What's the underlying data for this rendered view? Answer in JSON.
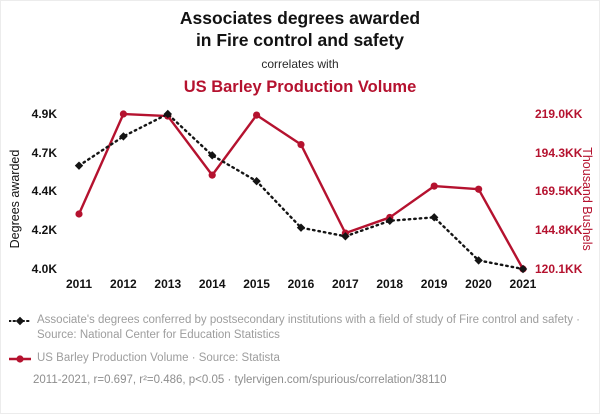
{
  "header": {
    "title_line1": "Associates degrees awarded",
    "title_line2": "in Fire control and safety",
    "connector": "correlates with",
    "title2": "US Barley Production Volume"
  },
  "colors": {
    "red": "#b5122f",
    "black": "#141414",
    "legend_gray": "#9d9d9d"
  },
  "icons": {
    "degrees_series_marker": "diamond-on-dotted-line",
    "barley_series_marker": "circle-on-solid-line"
  },
  "chart_data": {
    "type": "line",
    "x_ticks": [
      "2011",
      "2012",
      "2013",
      "2014",
      "2015",
      "2016",
      "2017",
      "2018",
      "2019",
      "2020",
      "2021"
    ],
    "y_left": {
      "label": "Degrees awarded",
      "min": 3.99,
      "max": 4.89,
      "ticks": [
        "4.9K",
        "4.7K",
        "4.4K",
        "4.2K",
        "4.0K"
      ]
    },
    "y_right": {
      "label": "Thousand Bushels",
      "min": 120.1,
      "max": 219.0,
      "ticks": [
        "219.0KK",
        "194.3KK",
        "169.5KK",
        "144.8KK",
        "120.1KK"
      ]
    },
    "series": [
      {
        "name": "Associates degrees awarded in Fire control and safety",
        "axis": "left",
        "color": "#141414",
        "style": "dotted-diamond",
        "values": [
          4.59,
          4.76,
          4.89,
          4.65,
          4.5,
          4.23,
          4.18,
          4.27,
          4.29,
          4.04,
          3.99
        ]
      },
      {
        "name": "US Barley Production Volume",
        "axis": "right",
        "color": "#b5122f",
        "style": "solid-circle",
        "values": [
          155.2,
          219.0,
          217.7,
          180.0,
          218.3,
          199.5,
          143.0,
          153.0,
          173.0,
          171.0,
          120.1
        ]
      }
    ],
    "legend_position": "bottom-left",
    "grid": false
  },
  "legend": {
    "series1": "Associate's degrees conferred by postsecondary institutions with a field of study of Fire control and safety · Source: National Center for Education Statistics",
    "series2": "US Barley Production Volume · Source: Statista",
    "footer": "2011-2021, r=0.697, r²=0.486, p<0.05 · tylervigen.com/spurious/correlation/38110"
  }
}
